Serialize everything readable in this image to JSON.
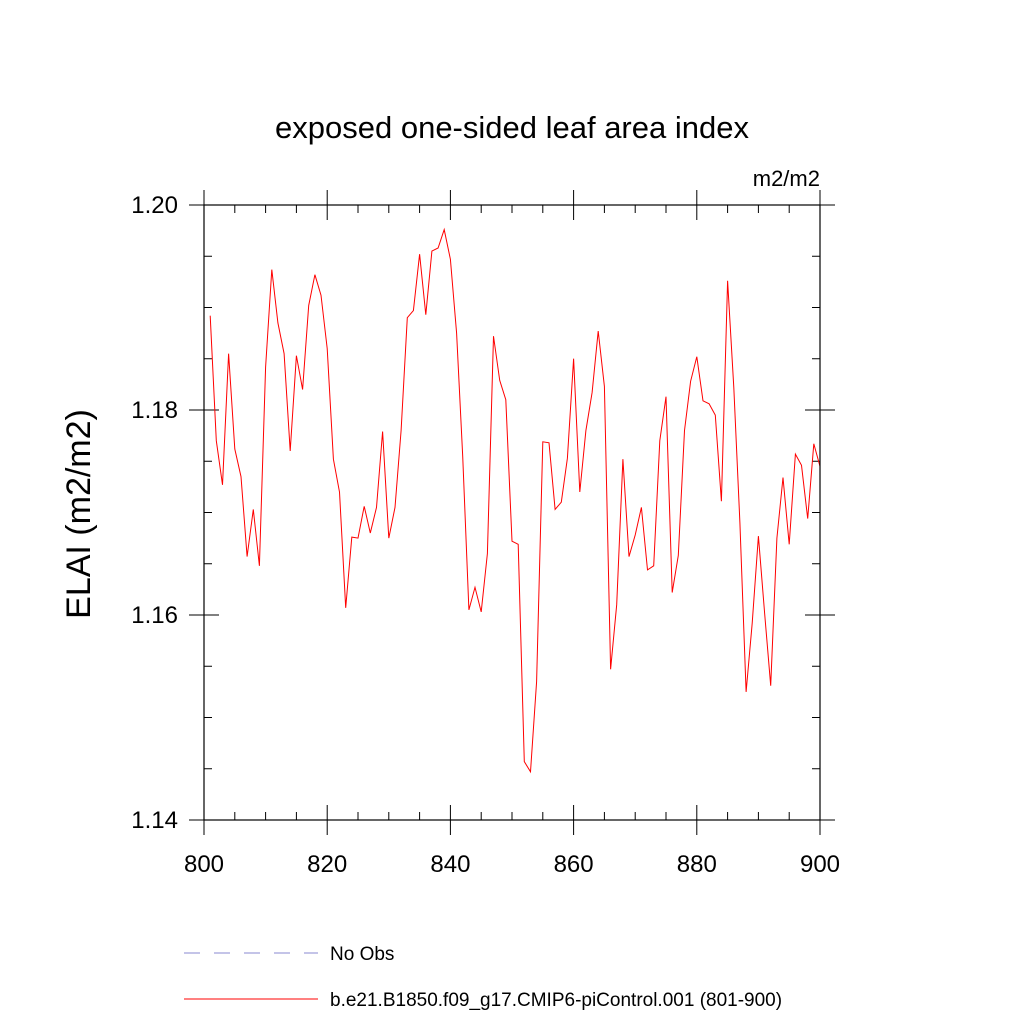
{
  "chart_data": {
    "type": "line",
    "title": "exposed one-sided leaf area index",
    "units": "m2/m2",
    "xlabel": "",
    "ylabel": "ELAI  (m2/m2)",
    "xlim": [
      800,
      900
    ],
    "ylim": [
      1.14,
      1.2
    ],
    "x_ticks": [
      800,
      820,
      840,
      860,
      880,
      900
    ],
    "x_tick_labels": [
      "800",
      "820",
      "840",
      "860",
      "880",
      "900"
    ],
    "x_minor_step": 5,
    "y_ticks": [
      1.14,
      1.16,
      1.18,
      1.2
    ],
    "y_tick_labels": [
      "1.14",
      "1.16",
      "1.18",
      "1.20"
    ],
    "y_minor_step": 0.005,
    "series": [
      {
        "name": "b.e21.B1850.f09_g17.CMIP6-piControl.001 (801-900)",
        "color": "#ff0000",
        "style": "solid",
        "x": [
          801,
          802,
          803,
          804,
          805,
          806,
          807,
          808,
          809,
          810,
          811,
          812,
          813,
          814,
          815,
          816,
          817,
          818,
          819,
          820,
          821,
          822,
          823,
          824,
          825,
          826,
          827,
          828,
          829,
          830,
          831,
          832,
          833,
          834,
          835,
          836,
          837,
          838,
          839,
          840,
          841,
          842,
          843,
          844,
          845,
          846,
          847,
          848,
          849,
          850,
          851,
          852,
          853,
          854,
          855,
          856,
          857,
          858,
          859,
          860,
          861,
          862,
          863,
          864,
          865,
          866,
          867,
          868,
          869,
          870,
          871,
          872,
          873,
          874,
          875,
          876,
          877,
          878,
          879,
          880,
          881,
          882,
          883,
          884,
          885,
          886,
          887,
          888,
          889,
          890,
          891,
          892,
          893,
          894,
          895,
          896,
          897,
          898,
          899,
          900
        ],
        "values": [
          1.1892,
          1.177,
          1.1727,
          1.1855,
          1.1762,
          1.1735,
          1.1657,
          1.1703,
          1.1648,
          1.1842,
          1.1937,
          1.1885,
          1.1855,
          1.176,
          1.1853,
          1.182,
          1.1902,
          1.1932,
          1.1912,
          1.186,
          1.1752,
          1.172,
          1.1607,
          1.1676,
          1.1675,
          1.1706,
          1.168,
          1.1705,
          1.1779,
          1.1675,
          1.1705,
          1.178,
          1.189,
          1.1897,
          1.1952,
          1.1893,
          1.1955,
          1.1958,
          1.1976,
          1.1947,
          1.1875,
          1.1755,
          1.1605,
          1.1627,
          1.1603,
          1.166,
          1.1872,
          1.1829,
          1.181,
          1.1672,
          1.1669,
          1.1457,
          1.1447,
          1.1535,
          1.1769,
          1.1768,
          1.1703,
          1.171,
          1.1753,
          1.185,
          1.172,
          1.178,
          1.1817,
          1.1877,
          1.1823,
          1.1547,
          1.161,
          1.1752,
          1.1657,
          1.1678,
          1.1705,
          1.1644,
          1.1648,
          1.177,
          1.1813,
          1.1622,
          1.1658,
          1.178,
          1.1828,
          1.1852,
          1.1809,
          1.1806,
          1.1795,
          1.1711,
          1.1926,
          1.1822,
          1.169,
          1.1525,
          1.1592,
          1.1677,
          1.1602,
          1.1531,
          1.1675,
          1.1734,
          1.1669,
          1.1757,
          1.1746,
          1.1694,
          1.1767,
          1.1745
        ]
      }
    ],
    "legend": {
      "placement": "bottom-left",
      "entries": [
        {
          "label": "No Obs",
          "color": "#8a8ad0",
          "style": "dashed"
        },
        {
          "label": "b.e21.B1850.f09_g17.CMIP6-piControl.001 (801-900)",
          "color": "#ff0000",
          "style": "solid"
        }
      ]
    }
  }
}
